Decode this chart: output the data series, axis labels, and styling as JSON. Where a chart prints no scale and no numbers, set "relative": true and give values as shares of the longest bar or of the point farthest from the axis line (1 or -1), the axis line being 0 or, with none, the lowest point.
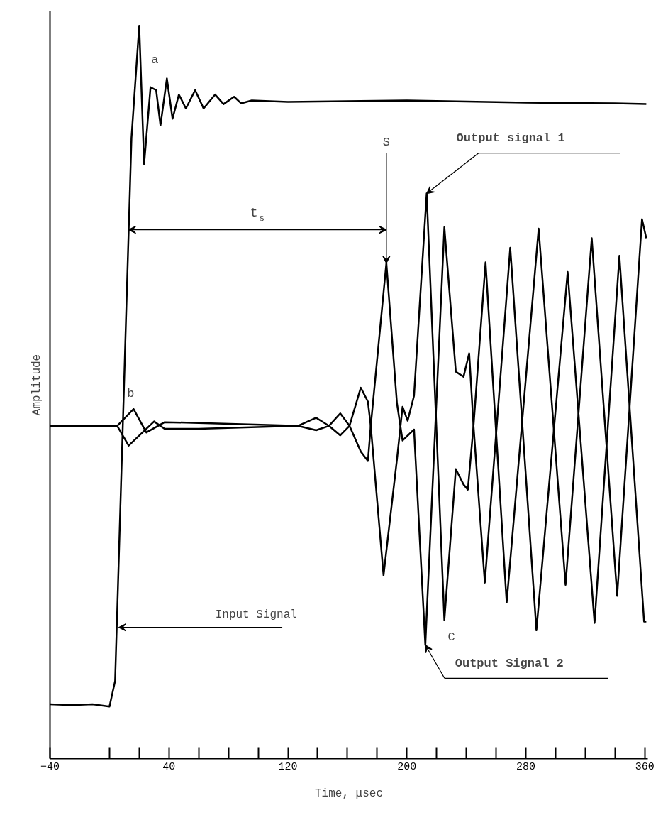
{
  "chart_data": {
    "type": "line",
    "relative": true,
    "xlabel": "Time, μsec",
    "ylabel": "Amplitude",
    "xlim": [
      -40,
      362
    ],
    "xticks": [
      -40,
      {
        "value": 0,
        "label": null
      },
      {
        "value": 20,
        "label": null
      },
      40,
      {
        "value": 60,
        "label": null
      },
      {
        "value": 80,
        "label": null
      },
      {
        "value": 100,
        "label": null
      },
      120,
      {
        "value": 140,
        "label": null
      },
      {
        "value": 160,
        "label": null
      },
      {
        "value": 180,
        "label": null
      },
      200,
      {
        "value": 220,
        "label": null
      },
      {
        "value": 240,
        "label": null
      },
      {
        "value": 260,
        "label": null
      },
      280,
      {
        "value": 300,
        "label": null
      },
      {
        "value": 320,
        "label": null
      },
      {
        "value": 340,
        "label": null
      },
      360
    ],
    "tick_labels": "x",
    "grid": false,
    "marker": "none",
    "line_style": "solid",
    "series": [
      {
        "color": "#000000",
        "x": [
          -40,
          -25.7,
          -11.4,
          0,
          3.8,
          14.8,
          20,
          23.3,
          27.6,
          31.4,
          34.3,
          38.6,
          42.4,
          46.7,
          51.4,
          57.6,
          63.3,
          71,
          76.7,
          83.8,
          88.6,
          95.7,
          120,
          200,
          280,
          340,
          361
        ],
        "values": [
          0.074,
          0.073,
          0.074,
          0.071,
          0.106,
          0.847,
          1.0,
          0.811,
          0.916,
          0.912,
          0.864,
          0.928,
          0.873,
          0.906,
          0.887,
          0.912,
          0.887,
          0.906,
          0.893,
          0.903,
          0.894,
          0.898,
          0.896,
          0.898,
          0.895,
          0.894,
          0.893
        ]
      },
      {
        "color": "#000000",
        "x": [
          -40,
          5.2,
          16.2,
          24.8,
          37.1,
          60,
          126.7,
          139,
          147.6,
          155.2,
          161.4,
          169,
          173.8,
          175.7,
          184.3,
          193.3,
          197.1,
          200.5,
          204.8,
          213.3,
          225.2,
          232.9,
          238.1,
          241,
          244.8,
          252.9,
          267.1,
          288.6,
          306.7,
          324.3,
          341.4,
          358.1,
          361
        ],
        "values": [
          0.454,
          0.454,
          0.477,
          0.445,
          0.459,
          0.458,
          0.454,
          0.465,
          0.454,
          0.441,
          0.454,
          0.506,
          0.487,
          0.454,
          0.25,
          0.408,
          0.48,
          0.461,
          0.495,
          0.771,
          0.189,
          0.395,
          0.374,
          0.367,
          0.454,
          0.677,
          0.213,
          0.723,
          0.237,
          0.71,
          0.222,
          0.736,
          0.71
        ]
      },
      {
        "color": "#000000",
        "x": [
          -40,
          5.2,
          12.9,
          30,
          37.1,
          60,
          126.7,
          139,
          147.6,
          155.2,
          161.4,
          169,
          173.8,
          175.7,
          186.2,
          193.3,
          197.1,
          204.8,
          212.4,
          225.2,
          232.9,
          238.1,
          241.9,
          244.8,
          252.4,
          269.5,
          287.1,
          308.1,
          326.2,
          342.9,
          359.5,
          361
        ],
        "values": [
          0.454,
          0.454,
          0.427,
          0.46,
          0.45,
          0.45,
          0.454,
          0.448,
          0.454,
          0.471,
          0.454,
          0.419,
          0.406,
          0.454,
          0.676,
          0.485,
          0.434,
          0.449,
          0.155,
          0.725,
          0.528,
          0.521,
          0.553,
          0.454,
          0.24,
          0.697,
          0.175,
          0.664,
          0.185,
          0.686,
          0.187,
          0.187
        ]
      }
    ],
    "annotations": [
      "a",
      "b",
      {
        "text": "S",
        "x": 186.2,
        "y": 0.676
      },
      "C",
      "t$_{s}$",
      {
        "text": "Input Signal",
        "x": 6.2,
        "y": 0.179
      },
      {
        "text": "Output signal 1",
        "x": 213.3,
        "y": 0.771
      },
      {
        "text": "Output Signal 2",
        "x": 212.4,
        "y": 0.155
      }
    ]
  }
}
